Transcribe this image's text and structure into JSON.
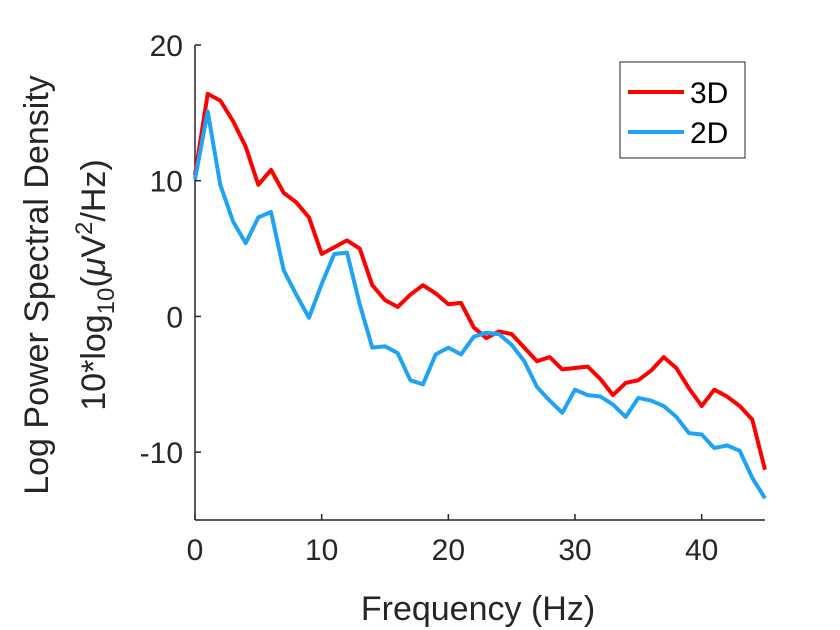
{
  "chart_data": {
    "type": "line",
    "title": "",
    "xlabel": "Frequency (Hz)",
    "ylabel_line1": "Log Power Spectral Density",
    "ylabel_line2_prefix": "10*log",
    "ylabel_line2_sub": "10",
    "ylabel_line2_mid": "(",
    "ylabel_line2_mu": "μ",
    "ylabel_line2_v": "V",
    "ylabel_line2_sup": "2",
    "ylabel_line2_suffix": "/Hz)",
    "xlim": [
      0,
      45
    ],
    "ylim": [
      -15,
      20
    ],
    "xticks": [
      0,
      10,
      20,
      30,
      40
    ],
    "xtick_labels": [
      "0",
      "10",
      "20",
      "30",
      "40"
    ],
    "yticks": [
      -10,
      0,
      10,
      20
    ],
    "ytick_labels": [
      "-10",
      "0",
      "10",
      "20"
    ],
    "legend_position": "top-right",
    "x": [
      0,
      1,
      2,
      3,
      4,
      5,
      6,
      7,
      8,
      9,
      10,
      11,
      12,
      13,
      14,
      15,
      16,
      17,
      18,
      19,
      20,
      21,
      22,
      23,
      24,
      25,
      26,
      27,
      28,
      29,
      30,
      31,
      32,
      33,
      34,
      35,
      36,
      37,
      38,
      39,
      40,
      41,
      42,
      43,
      44,
      45
    ],
    "series": [
      {
        "name": "3D",
        "color": "#ff0000",
        "values": [
          10.4,
          16.4,
          15.9,
          14.4,
          12.5,
          9.7,
          10.8,
          9.1,
          8.4,
          7.3,
          4.6,
          5.1,
          5.6,
          5.0,
          2.3,
          1.2,
          0.7,
          1.6,
          2.3,
          1.7,
          0.9,
          1.0,
          -0.8,
          -1.6,
          -1.1,
          -1.3,
          -2.3,
          -3.3,
          -3.0,
          -3.9,
          -3.8,
          -3.7,
          -4.6,
          -5.8,
          -4.9,
          -4.7,
          -4.0,
          -3.0,
          -3.8,
          -5.3,
          -6.6,
          -5.4,
          -5.9,
          -6.6,
          -7.6,
          -11.3
        ]
      },
      {
        "name": "2D",
        "color": "#1ea3f5",
        "values": [
          10.1,
          15.1,
          9.7,
          7.0,
          5.4,
          7.3,
          7.7,
          3.4,
          1.6,
          -0.1,
          2.4,
          4.6,
          4.7,
          0.9,
          -2.3,
          -2.2,
          -2.7,
          -4.7,
          -5.0,
          -2.8,
          -2.3,
          -2.8,
          -1.5,
          -1.2,
          -1.3,
          -2.1,
          -3.3,
          -5.2,
          -6.2,
          -7.1,
          -5.4,
          -5.8,
          -5.9,
          -6.5,
          -7.4,
          -6.0,
          -6.2,
          -6.6,
          -7.4,
          -8.6,
          -8.7,
          -9.7,
          -9.5,
          -9.9,
          -11.9,
          -13.4
        ]
      }
    ]
  }
}
